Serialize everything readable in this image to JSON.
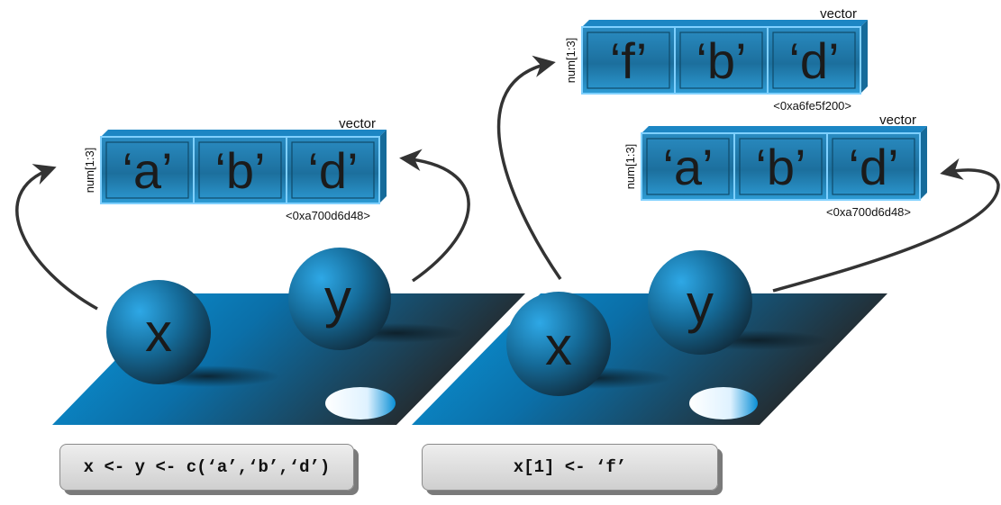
{
  "left_panel": {
    "vector": {
      "type_label": "vector",
      "index_label": "num[1:3]",
      "cells": [
        "‘a’",
        "‘b’",
        "‘d’"
      ],
      "address": "<0xa700d6d48>"
    },
    "ball_x": "x",
    "ball_y": "y",
    "code": "x <- y <- c(‘a’,‘b’,‘d’)"
  },
  "right_panel": {
    "vector_new": {
      "type_label": "vector",
      "index_label": "num[1:3]",
      "cells": [
        "‘f’",
        "‘b’",
        "‘d’"
      ],
      "address": "<0xa6fe5f200>"
    },
    "vector_old": {
      "type_label": "vector",
      "index_label": "num[1:3]",
      "cells": [
        "‘a’",
        "‘b’",
        "‘d’"
      ],
      "address": "<0xa700d6d48>"
    },
    "ball_x": "x",
    "ball_y": "y",
    "code": "x[1] <- ‘f’"
  },
  "colors": {
    "cell_blue": "#1f8fc8",
    "cell_dark": "#1f5f7f",
    "floor_blue": "#0a8fd6",
    "floor_dark": "#2a2a2a",
    "arrow": "#333333"
  }
}
